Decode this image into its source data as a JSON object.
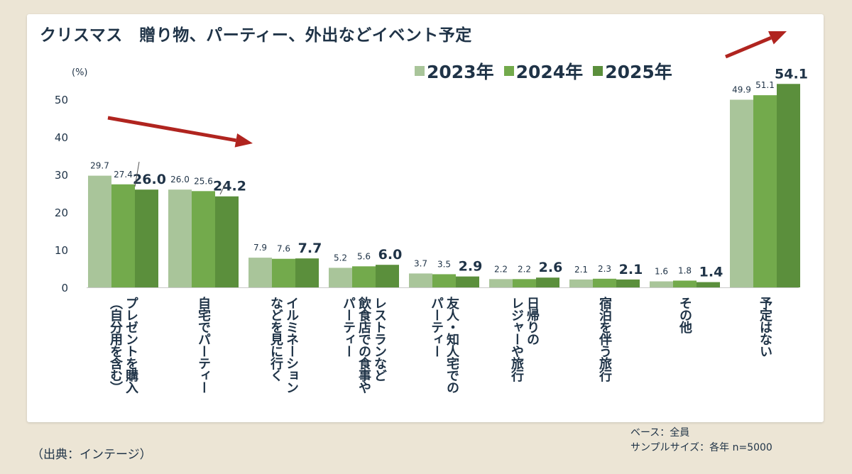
{
  "chart_data": {
    "type": "bar",
    "title": "クリスマス　贈り物、パーティー、外出などイベント予定",
    "unit_label": "(%)",
    "ylim": [
      0,
      55
    ],
    "yticks": [
      0,
      10,
      20,
      30,
      40,
      50
    ],
    "categories": [
      [
        "プレゼントを購入",
        "（自分用を含む）"
      ],
      [
        "自宅でパーティー"
      ],
      [
        "イルミネーション",
        "などを見に行く"
      ],
      [
        "レストランなど",
        "飲食店での食事や",
        "パーティー"
      ],
      [
        "友人・知人宅での",
        "パーティー"
      ],
      [
        "日帰りの",
        "レジャーや旅行"
      ],
      [
        "宿泊を伴う旅行"
      ],
      [
        "その他"
      ],
      [
        "予定はない"
      ]
    ],
    "series": [
      {
        "name": "2023年",
        "color": "#a9c59a",
        "values": [
          29.7,
          26.0,
          7.9,
          5.2,
          3.7,
          2.2,
          2.1,
          1.6,
          49.9
        ],
        "labels": [
          "29.7",
          "26.0",
          "7.9",
          "5.2",
          "3.7",
          "2.2",
          "2.1",
          "1.6",
          "49.9"
        ]
      },
      {
        "name": "2024年",
        "color": "#73aa4c",
        "values": [
          27.4,
          25.6,
          7.6,
          5.6,
          3.5,
          2.2,
          2.3,
          1.8,
          51.1
        ],
        "labels": [
          "27.4",
          "25.6",
          "7.6",
          "5.6",
          "3.5",
          "2.2",
          "2.3",
          "1.8",
          "51.1"
        ]
      },
      {
        "name": "2025年",
        "color": "#5b8f3c",
        "values": [
          26.0,
          24.2,
          7.7,
          6.0,
          2.9,
          2.6,
          2.1,
          1.4,
          54.1
        ],
        "labels": [
          "26.0",
          "24.2",
          "7.7",
          "6.0",
          "2.9",
          "2.6",
          "2.1",
          "1.4",
          "54.1"
        ]
      }
    ],
    "arrow_color": "#b0241f"
  },
  "footer": {
    "source": "（出典：インテージ）",
    "base": "ベース：全員",
    "sample": "サンプルサイズ：各年 n=5000"
  }
}
